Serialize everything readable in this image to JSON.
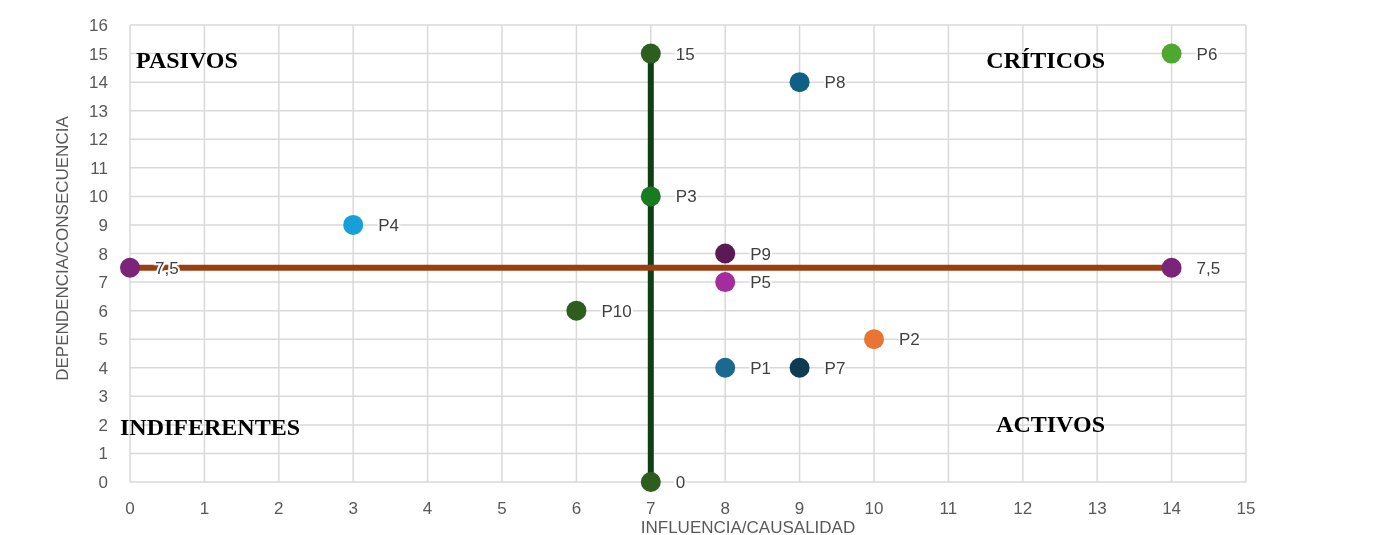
{
  "chart_data": {
    "type": "scatter",
    "xlabel": "INFLUENCIA/CAUSALIDAD",
    "ylabel": "DEPENDENCIA/CONSECUENCIA",
    "xlim": [
      0,
      15
    ],
    "xticks": [
      0,
      1,
      2,
      3,
      4,
      5,
      6,
      7,
      8,
      9,
      10,
      11,
      12,
      13,
      14,
      15
    ],
    "ylim": [
      0,
      16
    ],
    "yticks": [
      0,
      1,
      2,
      3,
      4,
      5,
      6,
      7,
      8,
      9,
      10,
      11,
      12,
      13,
      14,
      15,
      16
    ],
    "grid": true,
    "marker": "circle",
    "annotations": [
      "PASIVOS",
      "CRÍTICOS",
      "INDIFERENTES",
      "ACTIVOS"
    ],
    "series": [
      {
        "type": "line",
        "color": "#0f3f14",
        "colors": [
          "#2d5e1e",
          "#2d5e1e"
        ],
        "x": [
          7,
          7
        ],
        "values": [
          0,
          15
        ],
        "value_labels": [
          "0",
          "15"
        ]
      },
      {
        "type": "line",
        "color": "#9a3f12",
        "colors": [
          "#7b2479",
          "#7b2479"
        ],
        "x": [
          0,
          14
        ],
        "values": [
          7.5,
          7.5
        ],
        "value_labels": [
          "7,5",
          "7,5"
        ]
      },
      {
        "colors": [
          "#1a6a8f",
          "#ea7433",
          "#197b20",
          "#17a0d8",
          "#a32d9e",
          "#4ea72e",
          "#0e3b52",
          "#0f6083",
          "#5b1a56",
          "#2d5e1e"
        ],
        "x": [
          8,
          10,
          7,
          3,
          8,
          14,
          9,
          9,
          8,
          6
        ],
        "values": [
          4,
          5,
          10,
          9,
          7,
          15,
          4,
          14,
          8,
          6
        ],
        "value_labels": [
          "P1",
          "P2",
          "P3",
          "P4",
          "P5",
          "P6",
          "P7",
          "P8",
          "P9",
          "P10"
        ]
      }
    ]
  }
}
